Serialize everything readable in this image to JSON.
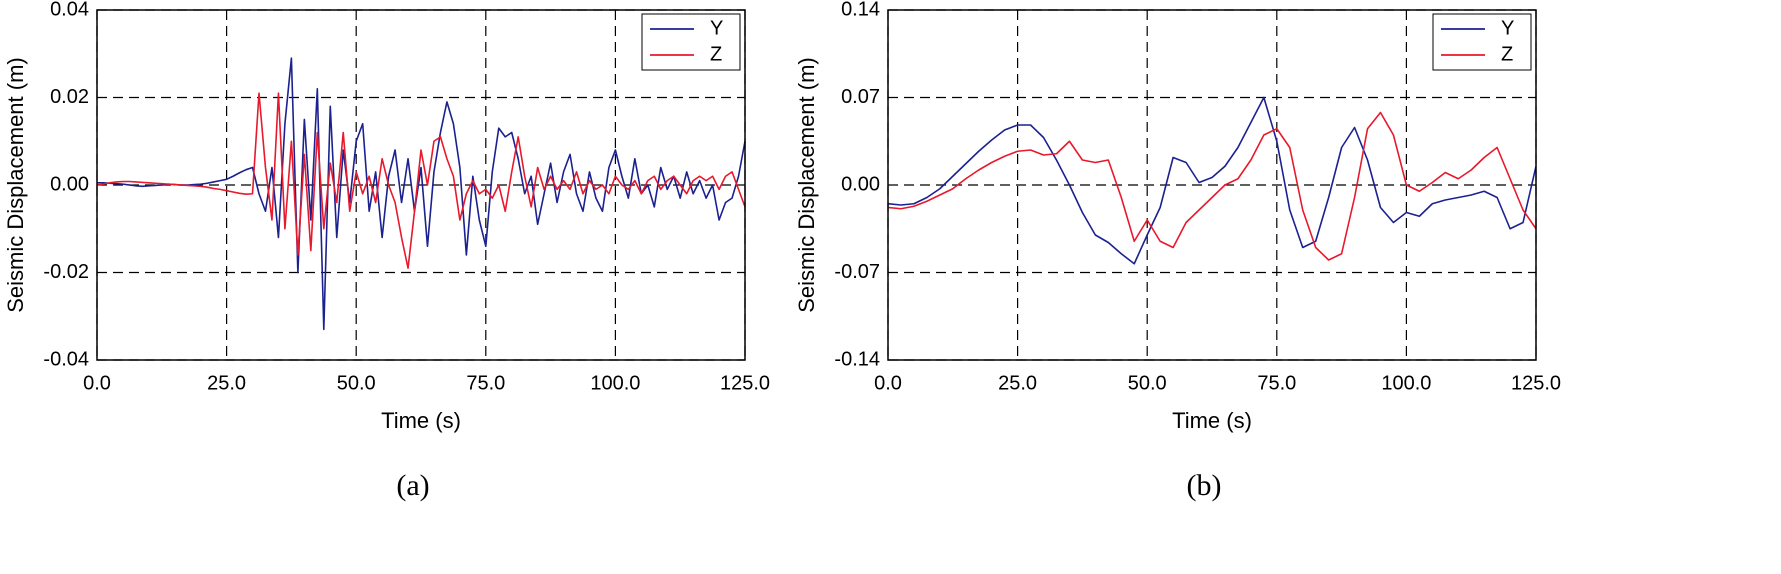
{
  "chart_data": [
    {
      "type": "line",
      "caption": "(a)",
      "xlabel": "Time (s)",
      "ylabel": "Seismic Displacement (m)",
      "xlim": [
        0,
        125
      ],
      "ylim": [
        -0.04,
        0.04
      ],
      "xticks": [
        {
          "value": 0,
          "label": "0.0"
        },
        {
          "value": 25,
          "label": "25.0"
        },
        {
          "value": 50,
          "label": "50.0"
        },
        {
          "value": 75,
          "label": "75.0"
        },
        {
          "value": 100,
          "label": "100.0"
        },
        {
          "value": 125,
          "label": "125.0"
        }
      ],
      "yticks": [
        {
          "value": -0.04,
          "label": "-0.04"
        },
        {
          "value": -0.02,
          "label": "-0.02"
        },
        {
          "value": 0,
          "label": "0.00"
        },
        {
          "value": 0.02,
          "label": "0.02"
        },
        {
          "value": 0.04,
          "label": "0.04"
        }
      ],
      "grid": true,
      "legend": "upper right",
      "x": [
        0,
        1.25,
        2.5,
        3.75,
        5,
        6.25,
        7.5,
        8.75,
        10,
        11.25,
        12.5,
        13.75,
        15,
        16.25,
        17.5,
        18.75,
        20,
        21.25,
        22.5,
        23.75,
        25,
        26.25,
        27.5,
        28.75,
        30,
        31.25,
        32.5,
        33.75,
        35,
        36.25,
        37.5,
        38.75,
        40,
        41.25,
        42.5,
        43.75,
        45,
        46.25,
        47.5,
        48.75,
        50,
        51.25,
        52.5,
        53.75,
        55,
        56.25,
        57.5,
        58.75,
        60,
        61.25,
        62.5,
        63.75,
        65,
        66.25,
        67.5,
        68.75,
        70,
        71.25,
        72.5,
        73.75,
        75,
        76.25,
        77.5,
        78.75,
        80,
        81.25,
        82.5,
        83.75,
        85,
        86.25,
        87.5,
        88.75,
        90,
        91.25,
        92.5,
        93.75,
        95,
        96.25,
        97.5,
        98.75,
        100,
        101.25,
        102.5,
        103.75,
        105,
        106.25,
        107.5,
        108.75,
        110,
        111.25,
        112.5,
        113.75,
        115,
        116.25,
        117.5,
        118.75,
        120,
        121.25,
        122.5,
        123.75,
        125
      ],
      "series": [
        {
          "name": "Y",
          "color": "#1c2190",
          "values": [
            0.0005,
            0.0005,
            0.0004,
            0.0003,
            0.0002,
            0.0,
            -0.0002,
            -0.0003,
            -0.0002,
            -0.0001,
            0.0,
            0.0002,
            0.0001,
            0.0,
            0.0,
            0.0001,
            0.0002,
            0.0004,
            0.0007,
            0.001,
            0.0013,
            0.002,
            0.0028,
            0.0035,
            0.004,
            -0.002,
            -0.006,
            0.004,
            -0.012,
            0.014,
            0.029,
            -0.02,
            0.015,
            -0.008,
            0.022,
            -0.033,
            0.018,
            -0.012,
            0.008,
            -0.004,
            0.01,
            0.014,
            -0.006,
            0.003,
            -0.012,
            0.002,
            0.008,
            -0.004,
            0.006,
            -0.006,
            0.004,
            -0.014,
            0.003,
            0.012,
            0.019,
            0.014,
            0.004,
            -0.016,
            0.002,
            -0.008,
            -0.014,
            0.003,
            0.013,
            0.011,
            0.012,
            0.006,
            -0.002,
            0.002,
            -0.009,
            -0.002,
            0.005,
            -0.004,
            0.003,
            0.007,
            -0.002,
            -0.006,
            0.003,
            -0.003,
            -0.006,
            0.004,
            0.008,
            0.002,
            -0.003,
            0.006,
            -0.002,
            0.0,
            -0.005,
            0.004,
            -0.001,
            0.002,
            -0.003,
            0.003,
            -0.002,
            0.001,
            -0.003,
            0.0,
            -0.008,
            -0.004,
            -0.003,
            0.002,
            0.01
          ]
        },
        {
          "name": "Z",
          "color": "#e8192c",
          "values": [
            0.0,
            0.0002,
            0.0005,
            0.0007,
            0.0008,
            0.0008,
            0.0007,
            0.0006,
            0.0005,
            0.0004,
            0.0003,
            0.0002,
            0.0001,
            0.0,
            -0.0001,
            -0.0002,
            -0.0003,
            -0.0005,
            -0.0008,
            -0.001,
            -0.0013,
            -0.0016,
            -0.0019,
            -0.0021,
            -0.002,
            0.021,
            0.004,
            -0.008,
            0.021,
            -0.01,
            0.01,
            -0.016,
            0.007,
            -0.015,
            0.012,
            -0.01,
            0.005,
            -0.004,
            0.012,
            -0.006,
            0.003,
            -0.002,
            0.002,
            -0.004,
            0.006,
            0.0,
            -0.004,
            -0.012,
            -0.019,
            -0.006,
            0.008,
            0.0,
            0.01,
            0.011,
            0.006,
            0.002,
            -0.008,
            -0.002,
            0.001,
            -0.002,
            -0.001,
            -0.003,
            0.0,
            -0.006,
            0.003,
            0.011,
            0.002,
            -0.005,
            0.004,
            -0.001,
            0.002,
            -0.001,
            0.001,
            -0.001,
            0.003,
            -0.002,
            0.001,
            -0.001,
            0.0,
            -0.002,
            0.002,
            0.0,
            -0.001,
            0.001,
            -0.002,
            0.001,
            0.002,
            -0.001,
            0.001,
            0.002,
            0.0,
            -0.002,
            0.001,
            0.002,
            0.001,
            0.002,
            -0.001,
            0.002,
            0.003,
            -0.001,
            -0.005
          ]
        }
      ]
    },
    {
      "type": "line",
      "caption": "(b)",
      "xlabel": "Time (s)",
      "ylabel": "Seismic Displacement (m)",
      "xlim": [
        0,
        125
      ],
      "ylim": [
        -0.14,
        0.14
      ],
      "xticks": [
        {
          "value": 0,
          "label": "0.0"
        },
        {
          "value": 25,
          "label": "25.0"
        },
        {
          "value": 50,
          "label": "50.0"
        },
        {
          "value": 75,
          "label": "75.0"
        },
        {
          "value": 100,
          "label": "100.0"
        },
        {
          "value": 125,
          "label": "125.0"
        }
      ],
      "yticks": [
        {
          "value": -0.14,
          "label": "-0.14"
        },
        {
          "value": -0.07,
          "label": "-0.07"
        },
        {
          "value": 0,
          "label": "0.00"
        },
        {
          "value": 0.07,
          "label": "0.07"
        },
        {
          "value": 0.14,
          "label": "0.14"
        }
      ],
      "grid": true,
      "legend": "upper right",
      "x": [
        0,
        2.5,
        5,
        7.5,
        10,
        12.5,
        15,
        17.5,
        20,
        22.5,
        25,
        27.5,
        30,
        32.5,
        35,
        37.5,
        40,
        42.5,
        45,
        47.5,
        50,
        52.5,
        55,
        57.5,
        60,
        62.5,
        65,
        67.5,
        70,
        72.5,
        75,
        77.5,
        80,
        82.5,
        85,
        87.5,
        90,
        92.5,
        95,
        97.5,
        100,
        102.5,
        105,
        107.5,
        110,
        112.5,
        115,
        117.5,
        120,
        122.5,
        125
      ],
      "series": [
        {
          "name": "Y",
          "color": "#1c2190",
          "values": [
            -0.015,
            -0.016,
            -0.015,
            -0.01,
            -0.003,
            0.007,
            0.017,
            0.027,
            0.036,
            0.044,
            0.048,
            0.048,
            0.038,
            0.02,
            0.0,
            -0.022,
            -0.04,
            -0.046,
            -0.055,
            -0.063,
            -0.04,
            -0.018,
            0.022,
            0.018,
            0.002,
            0.006,
            0.015,
            0.03,
            0.05,
            0.07,
            0.035,
            -0.02,
            -0.05,
            -0.045,
            -0.01,
            0.03,
            0.046,
            0.02,
            -0.018,
            -0.03,
            -0.022,
            -0.025,
            -0.015,
            -0.012,
            -0.01,
            -0.008,
            -0.005,
            -0.01,
            -0.035,
            -0.03,
            0.015
          ]
        },
        {
          "name": "Z",
          "color": "#e8192c",
          "values": [
            -0.018,
            -0.019,
            -0.017,
            -0.013,
            -0.008,
            -0.003,
            0.005,
            0.012,
            0.018,
            0.023,
            0.027,
            0.028,
            0.024,
            0.025,
            0.035,
            0.02,
            0.018,
            0.02,
            -0.01,
            -0.045,
            -0.028,
            -0.045,
            -0.05,
            -0.03,
            -0.02,
            -0.01,
            0.0,
            0.005,
            0.02,
            0.04,
            0.045,
            0.03,
            -0.02,
            -0.05,
            -0.06,
            -0.055,
            -0.01,
            0.045,
            0.058,
            0.04,
            0.0,
            -0.005,
            0.002,
            0.01,
            0.005,
            0.012,
            0.022,
            0.03,
            0.005,
            -0.02,
            -0.035
          ]
        }
      ]
    }
  ]
}
